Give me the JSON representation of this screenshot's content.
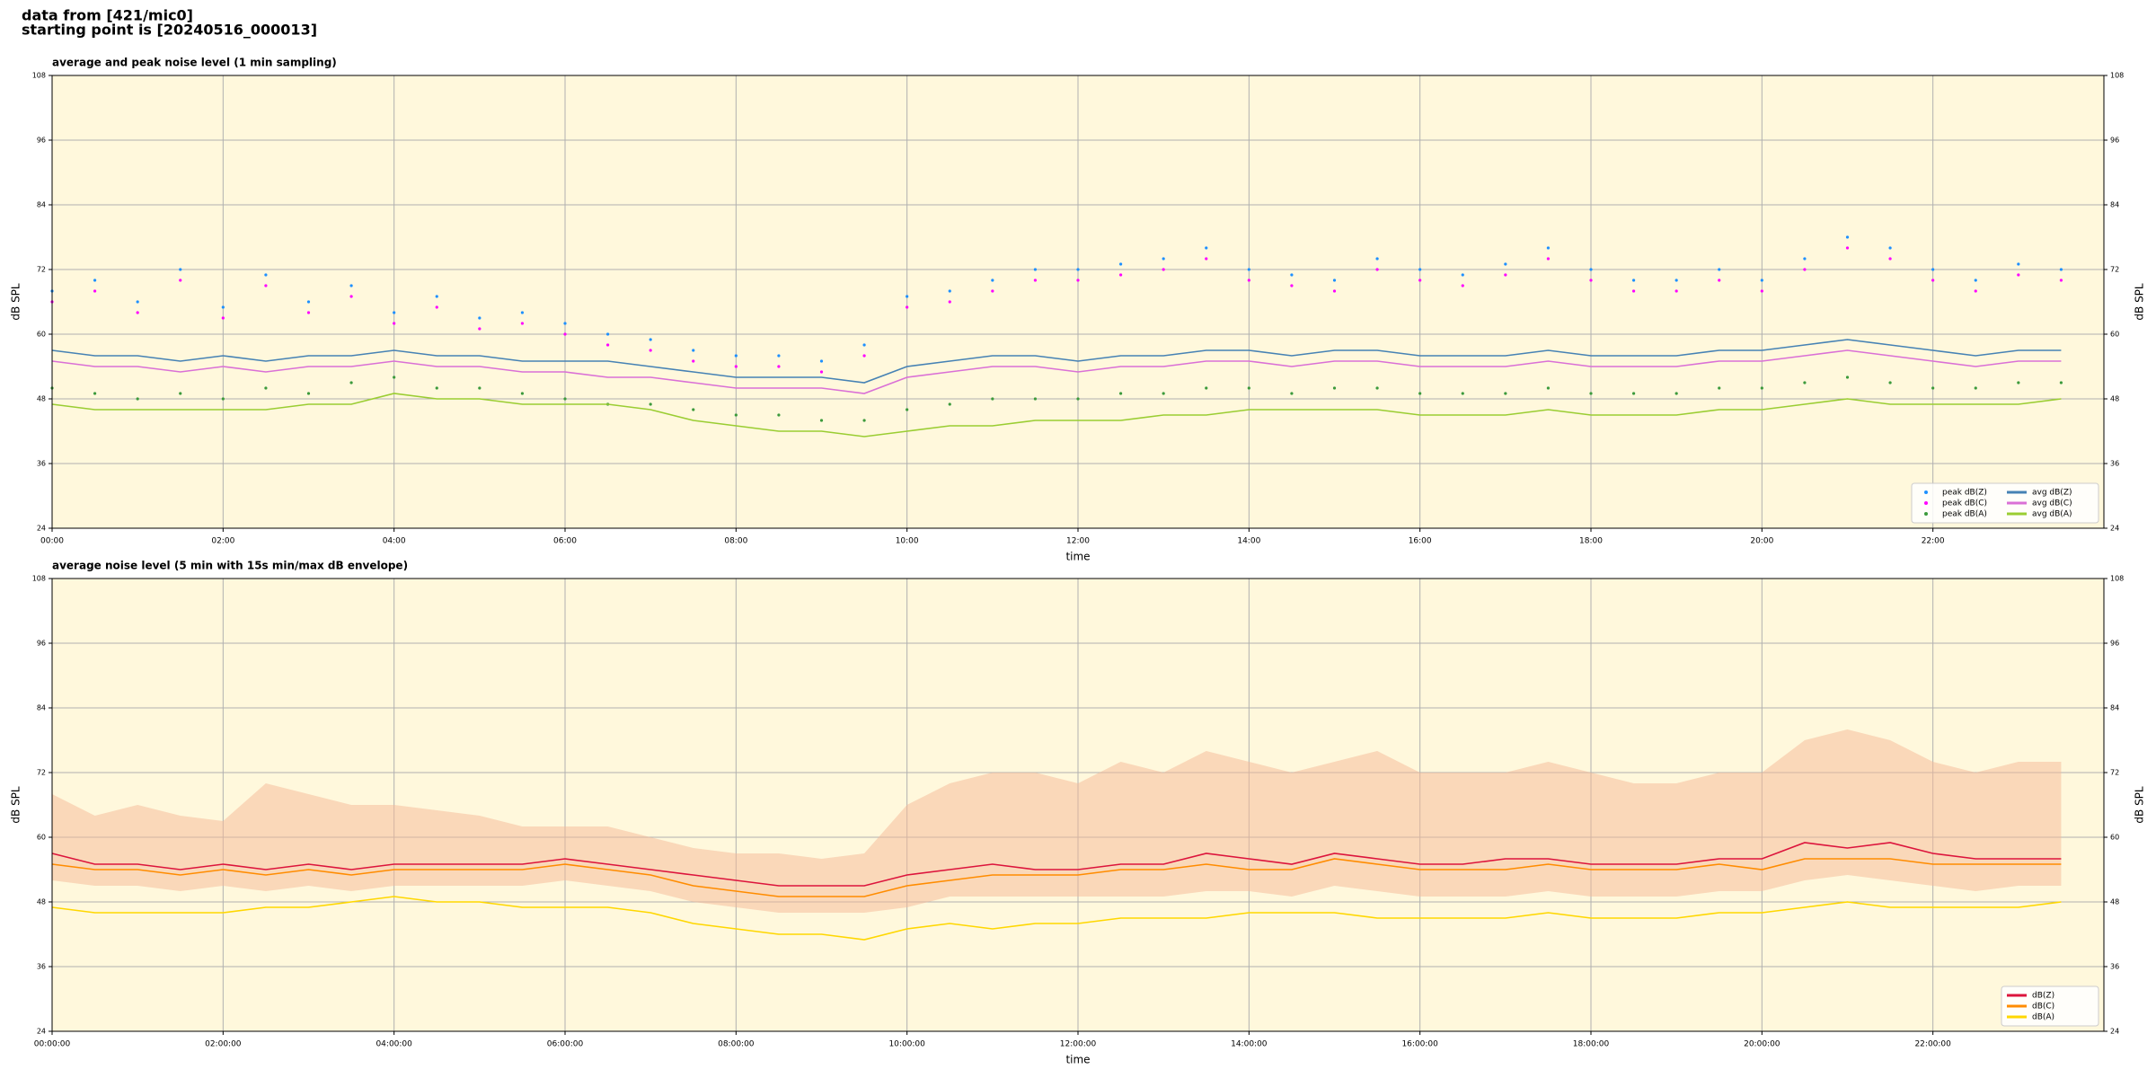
{
  "header": [
    "data from [421/mic0]",
    "starting point is [20240516_000013]"
  ],
  "chart_data": [
    {
      "type": "line",
      "title": "average and peak noise level (1 min sampling)",
      "xlabel": "time",
      "ylabel": "dB SPL",
      "background": "#fff8dc",
      "grid": true,
      "legend": "lower right",
      "legend_ncol": 2,
      "xlim": [
        0,
        24
      ],
      "ylim": [
        24,
        108
      ],
      "xticks": [
        {
          "value": 0,
          "label": "00:00"
        },
        {
          "value": 2,
          "label": "02:00"
        },
        {
          "value": 4,
          "label": "04:00"
        },
        {
          "value": 6,
          "label": "06:00"
        },
        {
          "value": 8,
          "label": "08:00"
        },
        {
          "value": 10,
          "label": "10:00"
        },
        {
          "value": 12,
          "label": "12:00"
        },
        {
          "value": 14,
          "label": "14:00"
        },
        {
          "value": 16,
          "label": "16:00"
        },
        {
          "value": 18,
          "label": "18:00"
        },
        {
          "value": 20,
          "label": "20:00"
        },
        {
          "value": 22,
          "label": "22:00"
        }
      ],
      "yticks": [
        24,
        36,
        48,
        60,
        72,
        84,
        96,
        108
      ],
      "x": [
        0,
        0.5,
        1,
        1.5,
        2,
        2.5,
        3,
        3.5,
        4,
        4.5,
        5,
        5.5,
        6,
        6.5,
        7,
        7.5,
        8,
        8.5,
        9,
        9.5,
        10,
        10.5,
        11,
        11.5,
        12,
        12.5,
        13,
        13.5,
        14,
        14.5,
        15,
        15.5,
        16,
        16.5,
        17,
        17.5,
        18,
        18.5,
        19,
        19.5,
        20,
        20.5,
        21,
        21.5,
        22,
        22.5,
        23,
        23.5
      ],
      "series": [
        {
          "name": "peak dB(Z)",
          "color": "#1e90ff",
          "style": "points",
          "values": [
            68,
            70,
            66,
            72,
            65,
            71,
            66,
            69,
            64,
            67,
            63,
            64,
            62,
            60,
            59,
            57,
            56,
            56,
            55,
            58,
            67,
            68,
            70,
            72,
            72,
            73,
            74,
            76,
            72,
            71,
            70,
            74,
            72,
            71,
            73,
            76,
            72,
            70,
            70,
            72,
            70,
            74,
            78,
            76,
            72,
            70,
            73,
            72
          ]
        },
        {
          "name": "peak dB(C)",
          "color": "#ff00ff",
          "style": "points",
          "values": [
            66,
            68,
            64,
            70,
            63,
            69,
            64,
            67,
            62,
            65,
            61,
            62,
            60,
            58,
            57,
            55,
            54,
            54,
            53,
            56,
            65,
            66,
            68,
            70,
            70,
            71,
            72,
            74,
            70,
            69,
            68,
            72,
            70,
            69,
            71,
            74,
            70,
            68,
            68,
            70,
            68,
            72,
            76,
            74,
            70,
            68,
            71,
            70
          ]
        },
        {
          "name": "peak dB(A)",
          "color": "#3c9a3c",
          "style": "points",
          "values": [
            50,
            49,
            48,
            49,
            48,
            50,
            49,
            51,
            52,
            50,
            50,
            49,
            48,
            47,
            47,
            46,
            45,
            45,
            44,
            44,
            46,
            47,
            48,
            48,
            48,
            49,
            49,
            50,
            50,
            49,
            50,
            50,
            49,
            49,
            49,
            50,
            49,
            49,
            49,
            50,
            50,
            51,
            52,
            51,
            50,
            50,
            51,
            51
          ]
        },
        {
          "name": "avg dB(Z)",
          "color": "#4682b4",
          "style": "line",
          "values": [
            57,
            56,
            56,
            55,
            56,
            55,
            56,
            56,
            57,
            56,
            56,
            55,
            55,
            55,
            54,
            53,
            52,
            52,
            52,
            51,
            54,
            55,
            56,
            56,
            55,
            56,
            56,
            57,
            57,
            56,
            57,
            57,
            56,
            56,
            56,
            57,
            56,
            56,
            56,
            57,
            57,
            58,
            59,
            58,
            57,
            56,
            57,
            57
          ]
        },
        {
          "name": "avg dB(C)",
          "color": "#da70d6",
          "style": "line",
          "values": [
            55,
            54,
            54,
            53,
            54,
            53,
            54,
            54,
            55,
            54,
            54,
            53,
            53,
            52,
            52,
            51,
            50,
            50,
            50,
            49,
            52,
            53,
            54,
            54,
            53,
            54,
            54,
            55,
            55,
            54,
            55,
            55,
            54,
            54,
            54,
            55,
            54,
            54,
            54,
            55,
            55,
            56,
            57,
            56,
            55,
            54,
            55,
            55
          ]
        },
        {
          "name": "avg dB(A)",
          "color": "#9acd32",
          "style": "line",
          "values": [
            47,
            46,
            46,
            46,
            46,
            46,
            47,
            47,
            49,
            48,
            48,
            47,
            47,
            47,
            46,
            44,
            43,
            42,
            42,
            41,
            42,
            43,
            43,
            44,
            44,
            44,
            45,
            45,
            46,
            46,
            46,
            46,
            45,
            45,
            45,
            46,
            45,
            45,
            45,
            46,
            46,
            47,
            48,
            47,
            47,
            47,
            47,
            48
          ]
        }
      ]
    },
    {
      "type": "line",
      "title": "average noise level (5 min with 15s min/max dB envelope)",
      "xlabel": "time",
      "ylabel": "dB SPL",
      "background": "#fff8dc",
      "grid": true,
      "legend": "lower right",
      "legend_ncol": 1,
      "xlim": [
        0,
        24
      ],
      "ylim": [
        24,
        108
      ],
      "xticks": [
        {
          "value": 0,
          "label": "00:00:00"
        },
        {
          "value": 2,
          "label": "02:00:00"
        },
        {
          "value": 4,
          "label": "04:00:00"
        },
        {
          "value": 6,
          "label": "06:00:00"
        },
        {
          "value": 8,
          "label": "08:00:00"
        },
        {
          "value": 10,
          "label": "10:00:00"
        },
        {
          "value": 12,
          "label": "12:00:00"
        },
        {
          "value": 14,
          "label": "14:00:00"
        },
        {
          "value": 16,
          "label": "16:00:00"
        },
        {
          "value": 18,
          "label": "18:00:00"
        },
        {
          "value": 20,
          "label": "20:00:00"
        },
        {
          "value": 22,
          "label": "22:00:00"
        }
      ],
      "yticks": [
        24,
        36,
        48,
        60,
        72,
        84,
        96,
        108
      ],
      "x": [
        0,
        0.5,
        1,
        1.5,
        2,
        2.5,
        3,
        3.5,
        4,
        4.5,
        5,
        5.5,
        6,
        6.5,
        7,
        7.5,
        8,
        8.5,
        9,
        9.5,
        10,
        10.5,
        11,
        11.5,
        12,
        12.5,
        13,
        13.5,
        14,
        14.5,
        15,
        15.5,
        16,
        16.5,
        17,
        17.5,
        18,
        18.5,
        19,
        19.5,
        20,
        20.5,
        21,
        21.5,
        22,
        22.5,
        23,
        23.5
      ],
      "envelope": {
        "color": "#f6b896",
        "max": [
          68,
          64,
          66,
          64,
          63,
          70,
          68,
          66,
          66,
          65,
          64,
          62,
          62,
          62,
          60,
          58,
          57,
          57,
          56,
          57,
          66,
          70,
          72,
          72,
          70,
          74,
          72,
          76,
          74,
          72,
          74,
          76,
          72,
          72,
          72,
          74,
          72,
          70,
          70,
          72,
          72,
          78,
          80,
          78,
          74,
          72,
          74,
          74
        ],
        "min": [
          52,
          51,
          51,
          50,
          51,
          50,
          51,
          50,
          51,
          51,
          51,
          51,
          52,
          51,
          50,
          48,
          47,
          46,
          46,
          46,
          47,
          49,
          49,
          49,
          49,
          49,
          49,
          50,
          50,
          49,
          51,
          50,
          49,
          49,
          49,
          50,
          49,
          49,
          49,
          50,
          50,
          52,
          53,
          52,
          51,
          50,
          51,
          51
        ]
      },
      "series": [
        {
          "name": "dB(Z)",
          "color": "#dc143c",
          "style": "line",
          "values": [
            57,
            55,
            55,
            54,
            55,
            54,
            55,
            54,
            55,
            55,
            55,
            55,
            56,
            55,
            54,
            53,
            52,
            51,
            51,
            51,
            53,
            54,
            55,
            54,
            54,
            55,
            55,
            57,
            56,
            55,
            57,
            56,
            55,
            55,
            56,
            56,
            55,
            55,
            55,
            56,
            56,
            59,
            58,
            59,
            57,
            56,
            56,
            56
          ]
        },
        {
          "name": "dB(C)",
          "color": "#ff8c00",
          "style": "line",
          "values": [
            55,
            54,
            54,
            53,
            54,
            53,
            54,
            53,
            54,
            54,
            54,
            54,
            55,
            54,
            53,
            51,
            50,
            49,
            49,
            49,
            51,
            52,
            53,
            53,
            53,
            54,
            54,
            55,
            54,
            54,
            56,
            55,
            54,
            54,
            54,
            55,
            54,
            54,
            54,
            55,
            54,
            56,
            56,
            56,
            55,
            55,
            55,
            55
          ]
        },
        {
          "name": "dB(A)",
          "color": "#ffd700",
          "style": "line",
          "values": [
            47,
            46,
            46,
            46,
            46,
            47,
            47,
            48,
            49,
            48,
            48,
            47,
            47,
            47,
            46,
            44,
            43,
            42,
            42,
            41,
            43,
            44,
            43,
            44,
            44,
            45,
            45,
            45,
            46,
            46,
            46,
            45,
            45,
            45,
            45,
            46,
            45,
            45,
            45,
            46,
            46,
            47,
            48,
            47,
            47,
            47,
            47,
            48
          ]
        }
      ]
    }
  ]
}
